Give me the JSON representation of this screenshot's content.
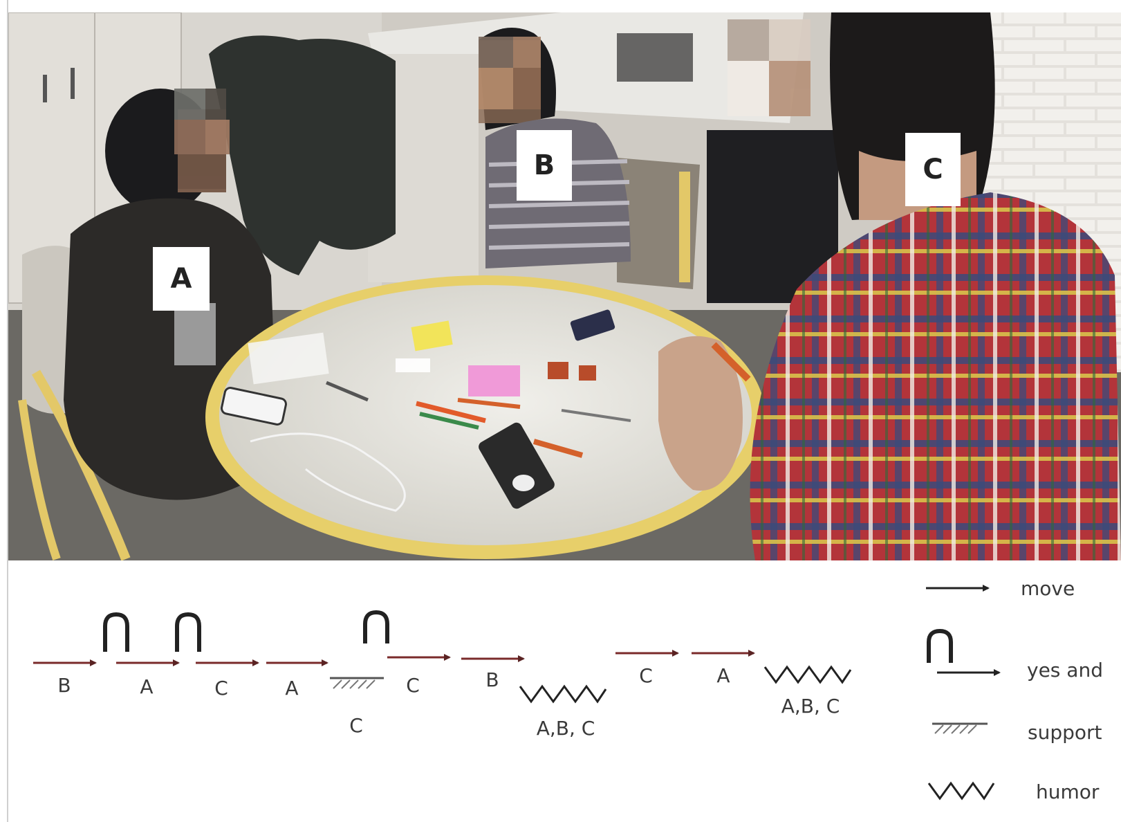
{
  "photo": {
    "description_icons": [
      "round-table",
      "chair",
      "phone",
      "marker",
      "sticky-note",
      "cable"
    ],
    "people": [
      {
        "id": "A",
        "label": "A"
      },
      {
        "id": "B",
        "label": "B"
      },
      {
        "id": "C",
        "label": "C"
      }
    ]
  },
  "sequence": [
    {
      "symbol": "move",
      "speaker": "B"
    },
    {
      "symbol": "yes-and",
      "speaker": "A"
    },
    {
      "symbol": "yes-and",
      "speaker": "C"
    },
    {
      "symbol": "move",
      "speaker": "A"
    },
    {
      "symbol": "support",
      "speaker": "C"
    },
    {
      "symbol": "yes-and",
      "speaker": "C"
    },
    {
      "symbol": "move",
      "speaker": "B"
    },
    {
      "symbol": "humor",
      "speaker": "A,B, C"
    },
    {
      "symbol": "move",
      "speaker": "C"
    },
    {
      "symbol": "move",
      "speaker": "A"
    },
    {
      "symbol": "humor",
      "speaker": "A,B, C"
    }
  ],
  "legend": {
    "move": "move",
    "yes_and": "yes and",
    "support": "support",
    "humor": "humor"
  },
  "colors": {
    "table_rim": "#e7cf6a",
    "table_top": "#dcdcd6",
    "floor": "#6c6a66",
    "wall": "#d6d2cc",
    "plaid_red": "#b3343a",
    "plaid_yellow": "#d9c24a",
    "plaid_blue": "#3b4a7a",
    "arrow_red": "#7a2a2a"
  }
}
